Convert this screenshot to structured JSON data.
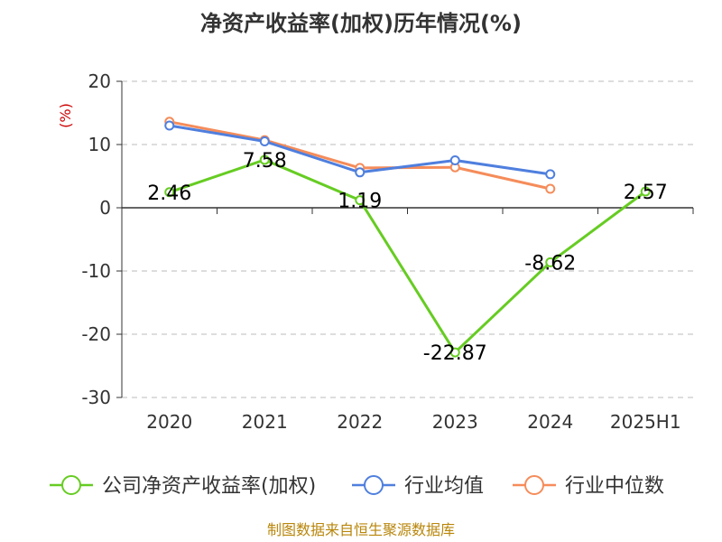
{
  "chart_data": {
    "type": "line",
    "title": "净资产收益率(加权)历年情况(%)",
    "ylabel": "(%)",
    "categories": [
      "2020",
      "2021",
      "2022",
      "2023",
      "2024",
      "2025H1"
    ],
    "ylim": [
      -30,
      20
    ],
    "yticks": [
      20,
      10,
      0,
      -10,
      -20,
      -30
    ],
    "grid": true,
    "legend_position": "bottom",
    "series": [
      {
        "name": "公司净资产收益率(加权)",
        "color": "#66cc22",
        "values": [
          2.46,
          7.58,
          1.19,
          -22.87,
          -8.62,
          2.57
        ],
        "labels": [
          "2.46",
          "7.58",
          "1.19",
          "-22.87",
          "-8.62",
          "2.57"
        ]
      },
      {
        "name": "行业均值",
        "color": "#4f7fde",
        "values": [
          13.0,
          10.5,
          5.6,
          7.5,
          5.3,
          null
        ]
      },
      {
        "name": "行业中位数",
        "color": "#f58c5a",
        "values": [
          13.6,
          10.7,
          6.3,
          6.4,
          3.0,
          null
        ]
      }
    ]
  },
  "source": "制图数据来自恒生聚源数据库"
}
